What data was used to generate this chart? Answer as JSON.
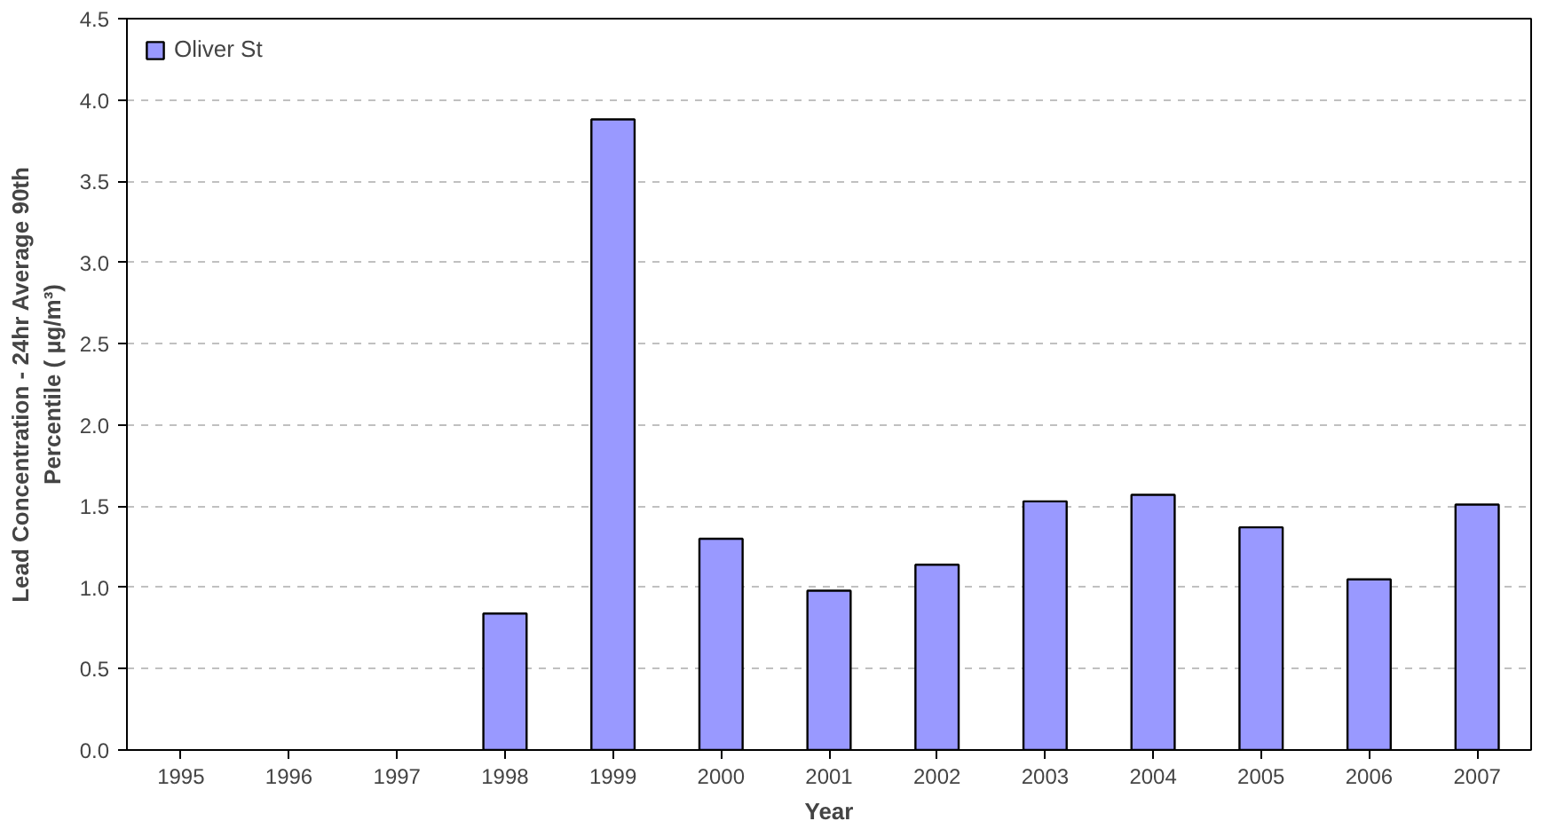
{
  "chart_data": {
    "type": "bar",
    "xlabel": "Year",
    "ylabel": "Lead Concentration - 24hr Average 90th Percentile ( µg/m³)",
    "categories": [
      "1995",
      "1996",
      "1997",
      "1998",
      "1999",
      "2000",
      "2001",
      "2002",
      "2003",
      "2004",
      "2005",
      "2006",
      "2007"
    ],
    "series": [
      {
        "name": "Oliver St",
        "color": "#9999ff",
        "values": [
          null,
          null,
          null,
          0.84,
          3.88,
          1.3,
          0.98,
          1.14,
          1.53,
          1.57,
          1.37,
          1.05,
          1.51
        ]
      }
    ],
    "ylim": [
      0,
      4.5
    ],
    "yticks": [
      {
        "value": 0,
        "label": "0.0"
      },
      0.5,
      {
        "value": 1,
        "label": "1.0"
      },
      1.5,
      {
        "value": 2,
        "label": "2.0"
      },
      2.5,
      {
        "value": 3,
        "label": "3.0"
      },
      3.5,
      {
        "value": 4,
        "label": "4.0"
      },
      4.5
    ],
    "grid": "y",
    "legend": "top left"
  }
}
